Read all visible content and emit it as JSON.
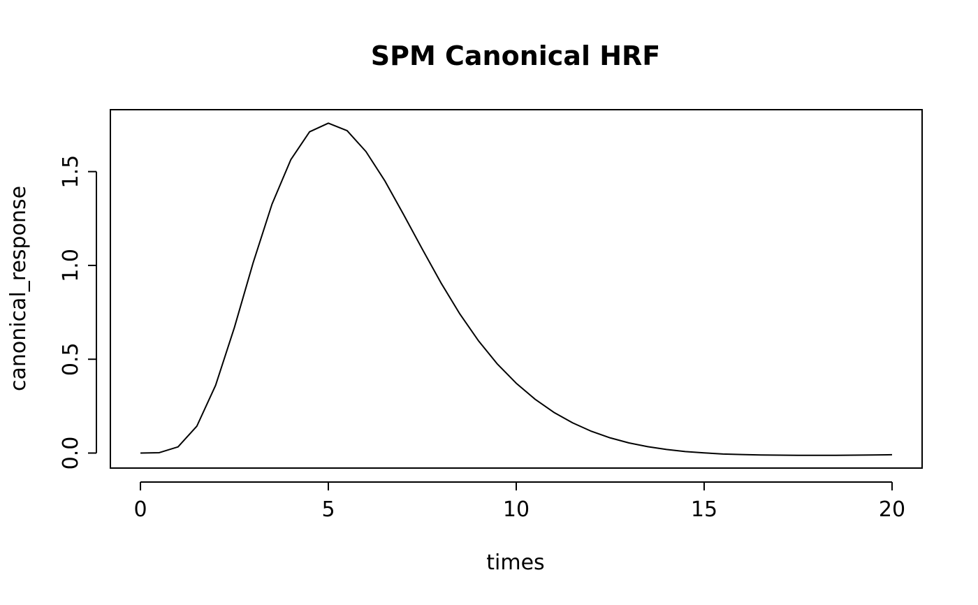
{
  "chart_data": {
    "type": "line",
    "title": "SPM Canonical HRF",
    "xlabel": "times",
    "ylabel": "canonical_response",
    "xlim": [
      -0.8,
      20.8
    ],
    "ylim": [
      -0.08,
      1.83
    ],
    "x_ticks": [
      0,
      5,
      10,
      15,
      20
    ],
    "x_tick_labels": [
      "0",
      "5",
      "10",
      "15",
      "20"
    ],
    "y_ticks": [
      0.0,
      0.5,
      1.0,
      1.5
    ],
    "y_tick_labels": [
      "0.0",
      "0.5",
      "1.0",
      "1.5"
    ],
    "grid": false,
    "series": [
      {
        "x": [
          0,
          0.5,
          1,
          1.5,
          2,
          2.5,
          3,
          3.5,
          4,
          4.5,
          5,
          5.5,
          6,
          6.5,
          7,
          7.5,
          8,
          8.5,
          9,
          9.5,
          10,
          10.5,
          11,
          11.5,
          12,
          12.5,
          13,
          13.5,
          14,
          14.5,
          15,
          15.5,
          16,
          16.5,
          17,
          17.5,
          18,
          18.5,
          19,
          19.5,
          20
        ],
        "values": [
          0.0,
          0.002,
          0.033,
          0.143,
          0.361,
          0.669,
          1.015,
          1.326,
          1.563,
          1.712,
          1.758,
          1.718,
          1.607,
          1.452,
          1.272,
          1.087,
          0.906,
          0.741,
          0.597,
          0.474,
          0.372,
          0.287,
          0.217,
          0.161,
          0.116,
          0.081,
          0.054,
          0.034,
          0.019,
          0.008,
          0.001,
          -0.005,
          -0.008,
          -0.01,
          -0.011,
          -0.012,
          -0.012,
          -0.012,
          -0.011,
          -0.01,
          -0.009
        ]
      }
    ],
    "colors": {
      "line": "#000000",
      "frame": "#000000",
      "background": "#ffffff"
    }
  }
}
